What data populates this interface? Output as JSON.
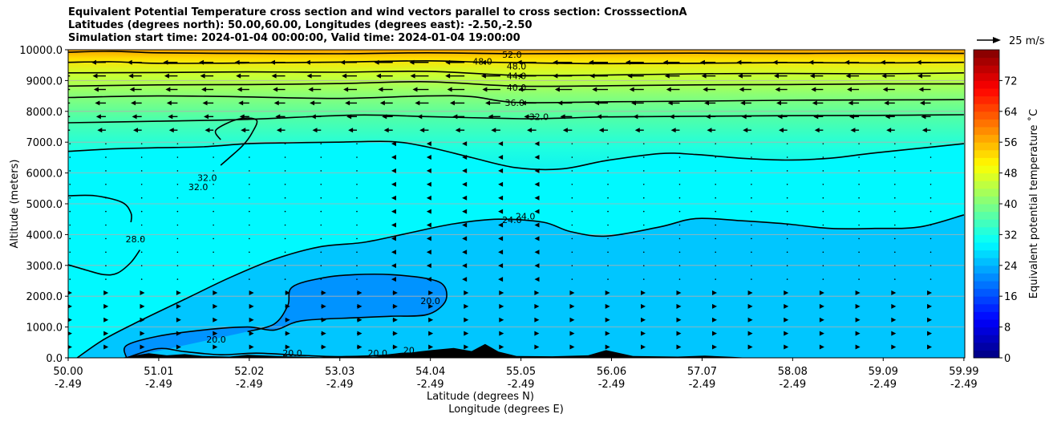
{
  "title": {
    "line1": "Equivalent Potential Temperature cross section and wind vectors parallel to cross section: CrosssectionA",
    "line2": "Latitudes (degrees north): 50.00,60.00, Longitudes (degrees east): -2.50,-2.50",
    "line3": "Simulation start time: 2024-01-04 00:00:00, Valid time: 2024-01-04 19:00:00"
  },
  "chart_data": {
    "type": "heatmap",
    "ylabel": "Altitude (meters)",
    "xlabel_line1": "Latitude (degrees N)",
    "xlabel_line2": "Longitude (degrees E)",
    "ylim": [
      0,
      10000
    ],
    "y_ticks": [
      "0.0",
      "1000.0",
      "2000.0",
      "3000.0",
      "4000.0",
      "5000.0",
      "6000.0",
      "7000.0",
      "8000.0",
      "9000.0",
      "10000.0"
    ],
    "y_tick_values": [
      0,
      1000,
      2000,
      3000,
      4000,
      5000,
      6000,
      7000,
      8000,
      9000,
      10000
    ],
    "x_ticks_lat": [
      "50.00",
      "51.01",
      "52.02",
      "53.03",
      "54.04",
      "55.05",
      "56.06",
      "57.07",
      "58.08",
      "59.09",
      "59.99"
    ],
    "x_ticks_lon": [
      "-2.49",
      "-2.49",
      "-2.49",
      "-2.49",
      "-2.49",
      "-2.49",
      "-2.49",
      "-2.49",
      "-2.49",
      "-2.49",
      "-2.49"
    ],
    "x_tick_values": [
      50.0,
      51.01,
      52.02,
      53.03,
      54.04,
      55.05,
      56.06,
      57.07,
      58.08,
      59.09,
      59.99
    ],
    "xlim": [
      50.0,
      60.0
    ],
    "grid": "horizontal",
    "colorbar": {
      "label": "Equivalent potential temperature ˚C",
      "ticks": [
        "0",
        "8",
        "16",
        "24",
        "32",
        "40",
        "48",
        "56",
        "64",
        "72"
      ],
      "tick_values": [
        0,
        8,
        16,
        24,
        32,
        40,
        48,
        56,
        64,
        72
      ],
      "range": [
        0,
        80
      ],
      "colormap": "jet"
    },
    "wind_key": {
      "label": "25 m/s"
    },
    "contour_levels": [
      20,
      24,
      28,
      32,
      36,
      40,
      44,
      48,
      52
    ],
    "contour_labels": [
      {
        "text": "52.0",
        "lat": 54.95,
        "alt": 9850
      },
      {
        "text": "48.0",
        "lat": 54.62,
        "alt": 9620
      },
      {
        "text": "48.0",
        "lat": 55.0,
        "alt": 9470
      },
      {
        "text": "44.0",
        "lat": 55.0,
        "alt": 9150
      },
      {
        "text": "40.0",
        "lat": 55.0,
        "alt": 8780
      },
      {
        "text": "36.0",
        "lat": 54.98,
        "alt": 8280
      },
      {
        "text": "32.0",
        "lat": 55.25,
        "alt": 7830
      },
      {
        "text": "32.0",
        "lat": 51.45,
        "alt": 5550
      },
      {
        "text": "32.0",
        "lat": 51.55,
        "alt": 5850
      },
      {
        "text": "28.0",
        "lat": 50.75,
        "alt": 3850
      },
      {
        "text": "24.0",
        "lat": 54.95,
        "alt": 4480
      },
      {
        "text": "24.0",
        "lat": 55.1,
        "alt": 4600
      },
      {
        "text": "20.0",
        "lat": 54.04,
        "alt": 1850
      },
      {
        "text": "20.0",
        "lat": 51.65,
        "alt": 600
      },
      {
        "text": "20.0",
        "lat": 52.5,
        "alt": 150
      },
      {
        "text": "20.0",
        "lat": 53.45,
        "alt": 150
      },
      {
        "text": "20",
        "lat": 53.8,
        "alt": 250
      }
    ],
    "contours": [
      {
        "level": 52,
        "points": [
          [
            50.0,
            9920
          ],
          [
            50.5,
            9950
          ],
          [
            51.0,
            9900
          ],
          [
            52.0,
            9880
          ],
          [
            53.0,
            9870
          ],
          [
            54.0,
            9900
          ],
          [
            55.05,
            9870
          ],
          [
            56.0,
            9880
          ],
          [
            57.0,
            9890
          ],
          [
            58.0,
            9880
          ],
          [
            59.0,
            9890
          ],
          [
            59.99,
            9880
          ]
        ]
      },
      {
        "level": 48,
        "points": [
          [
            50.0,
            9590
          ],
          [
            50.5,
            9610
          ],
          [
            51.0,
            9560
          ],
          [
            52.0,
            9570
          ],
          [
            53.0,
            9600
          ],
          [
            54.0,
            9640
          ],
          [
            54.6,
            9600
          ],
          [
            55.5,
            9560
          ],
          [
            56.0,
            9550
          ],
          [
            57.0,
            9560
          ],
          [
            58.0,
            9580
          ],
          [
            59.0,
            9570
          ],
          [
            59.99,
            9590
          ]
        ]
      },
      {
        "level": 44,
        "points": [
          [
            50.0,
            9250
          ],
          [
            51.0,
            9260
          ],
          [
            52.0,
            9280
          ],
          [
            53.0,
            9270
          ],
          [
            54.0,
            9300
          ],
          [
            55.0,
            9170
          ],
          [
            56.0,
            9180
          ],
          [
            57.0,
            9220
          ],
          [
            58.0,
            9230
          ],
          [
            59.0,
            9220
          ],
          [
            59.99,
            9250
          ]
        ]
      },
      {
        "level": 40,
        "points": [
          [
            50.0,
            8820
          ],
          [
            51.0,
            8860
          ],
          [
            52.0,
            8870
          ],
          [
            53.0,
            8900
          ],
          [
            54.0,
            8960
          ],
          [
            55.0,
            8820
          ],
          [
            56.0,
            8830
          ],
          [
            57.0,
            8860
          ],
          [
            58.0,
            8870
          ],
          [
            59.0,
            8890
          ],
          [
            59.99,
            8890
          ]
        ]
      },
      {
        "level": 36,
        "points": [
          [
            50.0,
            8450
          ],
          [
            51.0,
            8500
          ],
          [
            52.0,
            8470
          ],
          [
            53.0,
            8420
          ],
          [
            54.0,
            8500
          ],
          [
            54.5,
            8480
          ],
          [
            55.0,
            8290
          ],
          [
            56.0,
            8310
          ],
          [
            57.0,
            8330
          ],
          [
            58.0,
            8360
          ],
          [
            59.0,
            8370
          ],
          [
            59.99,
            8380
          ]
        ]
      },
      {
        "level": 32,
        "points": [
          [
            50.0,
            7630
          ],
          [
            51.0,
            7680
          ],
          [
            52.0,
            7740
          ],
          [
            53.2,
            7880
          ],
          [
            54.0,
            7830
          ],
          [
            55.05,
            7760
          ],
          [
            55.5,
            7780
          ],
          [
            56.0,
            7820
          ],
          [
            57.0,
            7840
          ],
          [
            58.0,
            7860
          ],
          [
            59.0,
            7870
          ],
          [
            59.99,
            7890
          ]
        ]
      },
      {
        "level": 32,
        "points": [
          [
            51.7,
            7080
          ],
          [
            51.65,
            7400
          ],
          [
            51.9,
            7750
          ],
          [
            52.1,
            7720
          ],
          [
            52.05,
            7300
          ],
          [
            51.95,
            6900
          ],
          [
            51.8,
            6500
          ],
          [
            51.7,
            6250
          ]
        ]
      },
      {
        "level": 28,
        "points": [
          [
            50.0,
            6700
          ],
          [
            50.5,
            6780
          ],
          [
            51.0,
            6820
          ],
          [
            51.5,
            6850
          ],
          [
            52.0,
            6950
          ],
          [
            52.5,
            6980
          ],
          [
            53.0,
            7000
          ],
          [
            53.6,
            7020
          ],
          [
            54.0,
            6850
          ],
          [
            54.5,
            6500
          ],
          [
            55.0,
            6170
          ],
          [
            55.5,
            6130
          ],
          [
            56.0,
            6400
          ],
          [
            56.6,
            6630
          ],
          [
            57.0,
            6600
          ],
          [
            57.5,
            6480
          ],
          [
            58.0,
            6420
          ],
          [
            58.5,
            6480
          ],
          [
            59.0,
            6650
          ],
          [
            59.99,
            6950
          ]
        ]
      },
      {
        "level": 28,
        "points": [
          [
            50.0,
            5260
          ],
          [
            50.3,
            5260
          ],
          [
            50.6,
            5050
          ],
          [
            50.7,
            4700
          ],
          [
            50.7,
            4400
          ]
        ]
      },
      {
        "level": 28,
        "points": [
          [
            50.0,
            3020
          ],
          [
            50.2,
            2850
          ],
          [
            50.4,
            2700
          ],
          [
            50.55,
            2750
          ],
          [
            50.7,
            3100
          ],
          [
            50.8,
            3500
          ]
        ]
      },
      {
        "level": 24,
        "points": [
          [
            50.1,
            0
          ],
          [
            50.4,
            600
          ],
          [
            50.8,
            1200
          ],
          [
            51.3,
            1900
          ],
          [
            51.8,
            2600
          ],
          [
            52.3,
            3200
          ],
          [
            52.8,
            3600
          ],
          [
            53.3,
            3750
          ],
          [
            53.8,
            4050
          ],
          [
            54.3,
            4350
          ],
          [
            54.8,
            4500
          ],
          [
            55.3,
            4400
          ],
          [
            55.6,
            4100
          ],
          [
            56.0,
            3950
          ],
          [
            56.6,
            4250
          ],
          [
            57.0,
            4520
          ],
          [
            57.5,
            4450
          ],
          [
            58.0,
            4350
          ],
          [
            58.5,
            4200
          ],
          [
            59.0,
            4200
          ],
          [
            59.5,
            4250
          ],
          [
            59.99,
            4640
          ]
        ]
      },
      {
        "level": 20,
        "points": [
          [
            50.65,
            0
          ],
          [
            50.65,
            400
          ],
          [
            51.0,
            700
          ],
          [
            51.5,
            900
          ],
          [
            52.0,
            1000
          ],
          [
            52.3,
            900
          ],
          [
            52.6,
            1200
          ],
          [
            53.2,
            1300
          ],
          [
            53.6,
            1350
          ],
          [
            54.0,
            1400
          ],
          [
            54.2,
            1800
          ],
          [
            54.2,
            2300
          ],
          [
            54.04,
            2550
          ],
          [
            53.6,
            2700
          ],
          [
            53.2,
            2700
          ],
          [
            52.85,
            2600
          ],
          [
            52.5,
            2300
          ],
          [
            52.45,
            1700
          ],
          [
            52.3,
            1100
          ],
          [
            52.0,
            850
          ]
        ]
      },
      {
        "level": 20,
        "points": [
          [
            50.65,
            0
          ],
          [
            51.0,
            300
          ],
          [
            51.3,
            200
          ],
          [
            51.7,
            100
          ],
          [
            52.1,
            150
          ],
          [
            52.6,
            80
          ],
          [
            53.0,
            40
          ],
          [
            53.5,
            80
          ],
          [
            53.8,
            150
          ],
          [
            54.1,
            40
          ]
        ]
      }
    ],
    "terrain": [
      [
        50.0,
        0
      ],
      [
        50.6,
        0
      ],
      [
        50.7,
        60
      ],
      [
        50.9,
        150
      ],
      [
        51.1,
        80
      ],
      [
        51.3,
        120
      ],
      [
        51.5,
        60
      ],
      [
        51.8,
        40
      ],
      [
        52.0,
        100
      ],
      [
        52.4,
        50
      ],
      [
        52.8,
        20
      ],
      [
        53.1,
        60
      ],
      [
        53.4,
        30
      ],
      [
        53.7,
        120
      ],
      [
        53.9,
        200
      ],
      [
        54.05,
        250
      ],
      [
        54.3,
        320
      ],
      [
        54.5,
        220
      ],
      [
        54.65,
        450
      ],
      [
        54.8,
        200
      ],
      [
        55.0,
        60
      ],
      [
        55.4,
        50
      ],
      [
        55.8,
        80
      ],
      [
        56.0,
        250
      ],
      [
        56.3,
        60
      ],
      [
        56.8,
        40
      ],
      [
        57.1,
        70
      ],
      [
        57.4,
        30
      ],
      [
        57.6,
        0
      ],
      [
        59.99,
        0
      ]
    ]
  }
}
